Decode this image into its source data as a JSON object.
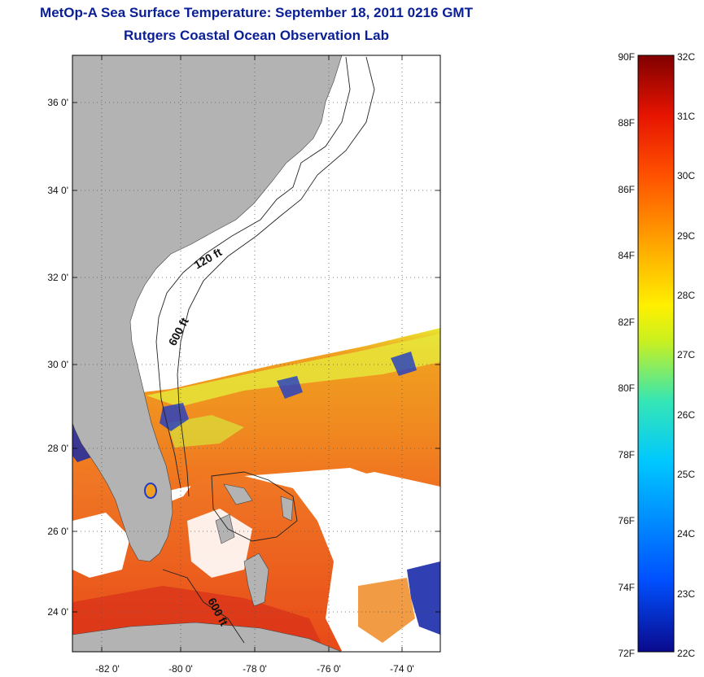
{
  "title": {
    "line1": "MetOp-A Sea Surface Temperature:  September 18, 2011 0216 GMT",
    "line2": "Rutgers Coastal Ocean Observation Lab"
  },
  "map": {
    "lat_ticks": [
      "36 0'",
      "34 0'",
      "32 0'",
      "30 0'",
      "28 0'",
      "26 0'",
      "24 0'"
    ],
    "lon_ticks": [
      "-82 0'",
      "-80 0'",
      "-78 0'",
      "-76 0'",
      "-74 0'"
    ],
    "contour_labels": [
      "120 ft",
      "600 ft",
      "600 ft"
    ],
    "land_color": "#b3b3b3",
    "no_data_color": "#ffffff"
  },
  "colorbar": {
    "fahrenheit_labels": [
      "90F",
      "88F",
      "86F",
      "84F",
      "82F",
      "80F",
      "78F",
      "76F",
      "74F",
      "72F"
    ],
    "celsius_labels": [
      "32C",
      "31C",
      "30C",
      "29C",
      "28C",
      "27C",
      "26C",
      "25C",
      "24C",
      "23C",
      "22C"
    ],
    "colormap": [
      "#0a0a8c",
      "#0050ff",
      "#00c8ff",
      "#35e6b5",
      "#c8f020",
      "#fff000",
      "#ffa800",
      "#ff5000",
      "#e61400",
      "#800000"
    ]
  }
}
